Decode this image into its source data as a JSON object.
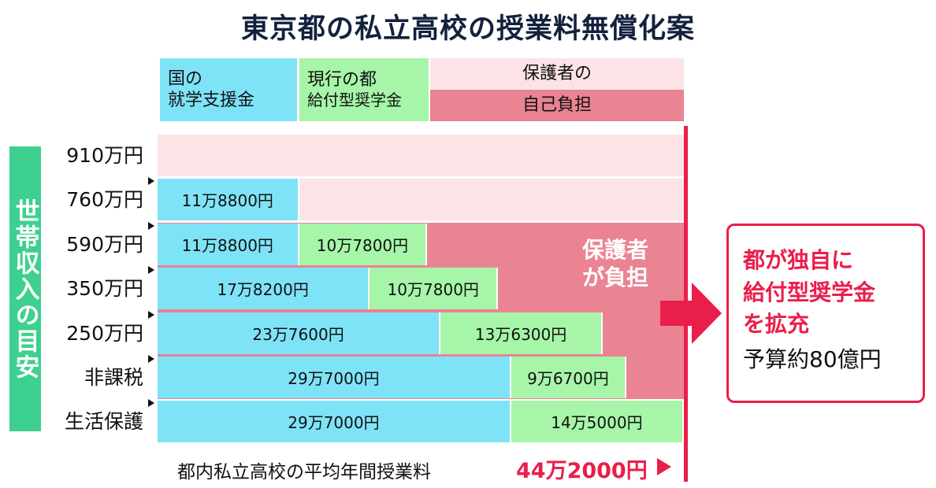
{
  "title": "東京都の私立高校の授業料無償化案",
  "legend": {
    "national": [
      "国の",
      "就学支援金"
    ],
    "scholarship": [
      "現行の都",
      "給付型奨学金"
    ],
    "guardian": [
      "保護者の",
      "自己負担"
    ]
  },
  "y_axis_title": "世帯収入の目安",
  "guardian_label": [
    "保護者",
    "が負担"
  ],
  "bottom": {
    "caption": "都内私立高校の平均年間授業料",
    "value": "44万2000円"
  },
  "callout": {
    "lines": [
      "都が独自に",
      "給付型奨学金",
      "を拡充"
    ],
    "budget": "予算約80億円"
  },
  "colors": {
    "national": "#7fe3f8",
    "scholarship": "#a6f5a8",
    "guardian_light": "#fbe3e6",
    "guardian": "#ea8392",
    "accent": "#ea1e4b",
    "axis_title_bg": "#3ed08e"
  },
  "chart_data": {
    "type": "bar",
    "orientation": "horizontal",
    "stacked": true,
    "title": "東京都の私立高校の授業料無償化案",
    "ylabel": "世帯収入の目安",
    "categories": [
      "910万円",
      "760万円",
      "590万円",
      "350万円",
      "250万円",
      "非課税",
      "生活保護"
    ],
    "xlim": [
      0,
      442000
    ],
    "reference_line": {
      "value": 442000,
      "label": "都内私立高校の平均年間授業料",
      "value_label": "44万2000円"
    },
    "series": [
      {
        "name": "国の就学支援金",
        "values": [
          0,
          118800,
          118800,
          178200,
          237600,
          297000,
          297000
        ],
        "labels": [
          null,
          "11万8800円",
          "11万8800円",
          "17万8200円",
          "23万7600円",
          "29万7000円",
          "29万7000円"
        ]
      },
      {
        "name": "現行の都給付型奨学金",
        "values": [
          0,
          0,
          107800,
          107800,
          136300,
          96700,
          145000
        ],
        "labels": [
          null,
          null,
          "10万7800円",
          "10万7800円",
          "13万6300円",
          "9万6700円",
          "14万5000円"
        ]
      },
      {
        "name": "保護者の自己負担",
        "values": [
          442000,
          323200,
          215400,
          156000,
          68100,
          48300,
          0
        ]
      }
    ]
  }
}
